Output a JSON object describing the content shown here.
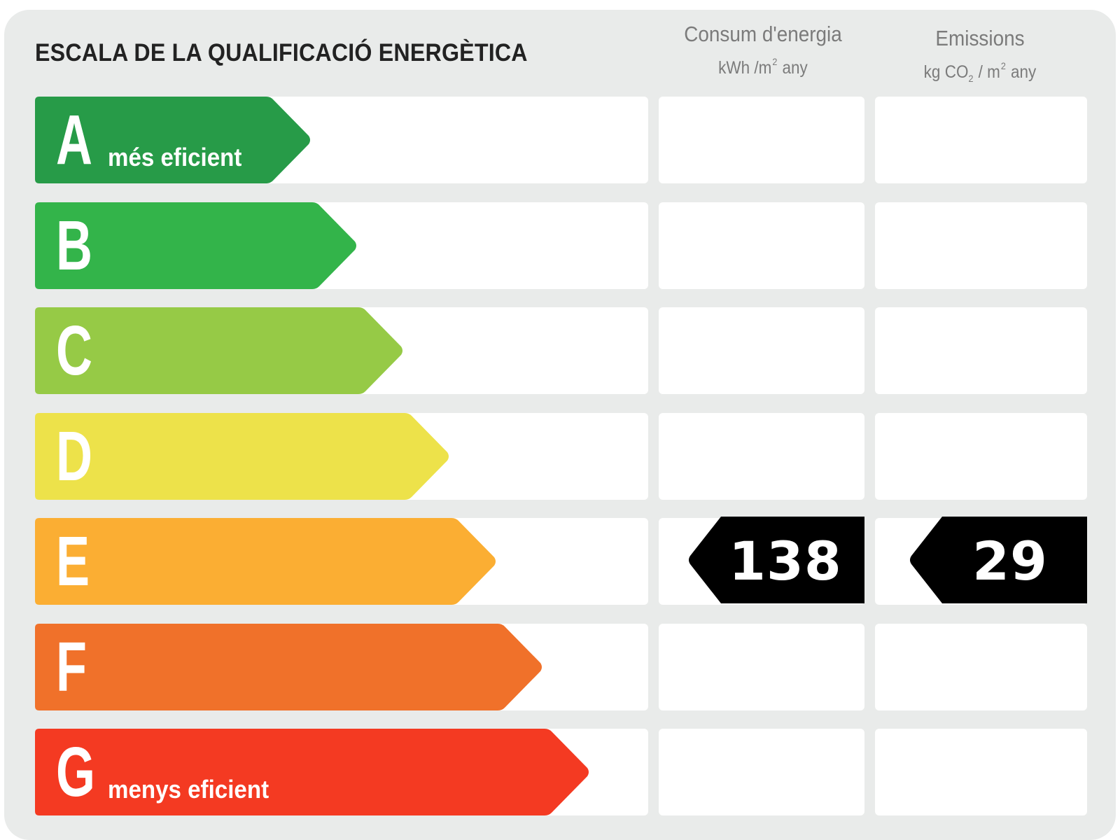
{
  "title": "ESCALA DE LA QUALIFICACIÓ ENERGÈTICA",
  "columns": {
    "energy": {
      "line1": "Consum d'energia",
      "unit_pre": "kWh /m",
      "unit_sup": "2",
      "unit_post": "any"
    },
    "emissions": {
      "line1": "Emissions",
      "unit_a": "kg CO",
      "unit_sub": "2",
      "unit_b": "/ m",
      "unit_sup": "2",
      "unit_post": "any"
    }
  },
  "rating_rows": [
    {
      "letter": "A",
      "sublabel": "més eficient",
      "color": "#279b48"
    },
    {
      "letter": "B",
      "sublabel": "",
      "color": "#33b44a"
    },
    {
      "letter": "C",
      "sublabel": "",
      "color": "#96ca46"
    },
    {
      "letter": "D",
      "sublabel": "",
      "color": "#ede24a"
    },
    {
      "letter": "E",
      "sublabel": "",
      "color": "#fbae33"
    },
    {
      "letter": "F",
      "sublabel": "",
      "color": "#f0712a"
    },
    {
      "letter": "G",
      "sublabel": "menys eficient",
      "color": "#f43a22"
    }
  ],
  "result": {
    "rating_letter": "E",
    "energy_value": "138",
    "emissions_value": "29",
    "marker_color": "#000000"
  }
}
